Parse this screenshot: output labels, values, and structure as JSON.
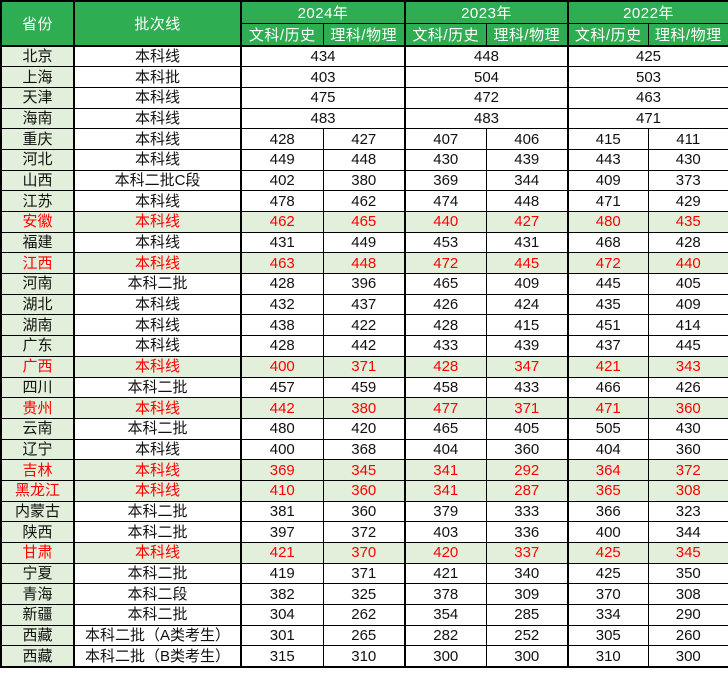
{
  "colors": {
    "header_bg": "#2EAD52",
    "header_text": "#FFFFFF",
    "province_col_bg": "#E2EFDA",
    "highlight_row_bg": "#E2EFDA",
    "highlight_text": "#FF0000",
    "body_text": "#111111",
    "border": "#000000",
    "cell_bg": "#FFFFFF"
  },
  "chart_data": {
    "type": "table",
    "title": "",
    "header": {
      "province": "省份",
      "batch": "批次线",
      "years": [
        "2024年",
        "2023年",
        "2022年"
      ],
      "subcols": [
        "文科/历史",
        "理科/物理"
      ]
    },
    "rows": [
      {
        "province": "北京",
        "batch": "本科线",
        "merged": true,
        "highlight": false,
        "values": [
          434,
          448,
          425
        ]
      },
      {
        "province": "上海",
        "batch": "本科批",
        "merged": true,
        "highlight": false,
        "values": [
          403,
          504,
          503
        ]
      },
      {
        "province": "天津",
        "batch": "本科线",
        "merged": true,
        "highlight": false,
        "values": [
          475,
          472,
          463
        ]
      },
      {
        "province": "海南",
        "batch": "本科线",
        "merged": true,
        "highlight": false,
        "values": [
          483,
          483,
          471
        ]
      },
      {
        "province": "重庆",
        "batch": "本科线",
        "merged": false,
        "highlight": false,
        "values": [
          428,
          427,
          407,
          406,
          415,
          411
        ]
      },
      {
        "province": "河北",
        "batch": "本科线",
        "merged": false,
        "highlight": false,
        "values": [
          449,
          448,
          430,
          439,
          443,
          430
        ]
      },
      {
        "province": "山西",
        "batch": "本科二批C段",
        "merged": false,
        "highlight": false,
        "values": [
          402,
          380,
          369,
          344,
          409,
          373
        ]
      },
      {
        "province": "江苏",
        "batch": "本科线",
        "merged": false,
        "highlight": false,
        "values": [
          478,
          462,
          474,
          448,
          471,
          429
        ]
      },
      {
        "province": "安徽",
        "batch": "本科线",
        "merged": false,
        "highlight": true,
        "values": [
          462,
          465,
          440,
          427,
          480,
          435
        ]
      },
      {
        "province": "福建",
        "batch": "本科线",
        "merged": false,
        "highlight": false,
        "values": [
          431,
          449,
          453,
          431,
          468,
          428
        ]
      },
      {
        "province": "江西",
        "batch": "本科线",
        "merged": false,
        "highlight": true,
        "values": [
          463,
          448,
          472,
          445,
          472,
          440
        ]
      },
      {
        "province": "河南",
        "batch": "本科二批",
        "merged": false,
        "highlight": false,
        "values": [
          428,
          396,
          465,
          409,
          445,
          405
        ]
      },
      {
        "province": "湖北",
        "batch": "本科线",
        "merged": false,
        "highlight": false,
        "values": [
          432,
          437,
          426,
          424,
          435,
          409
        ]
      },
      {
        "province": "湖南",
        "batch": "本科线",
        "merged": false,
        "highlight": false,
        "values": [
          438,
          422,
          428,
          415,
          451,
          414
        ]
      },
      {
        "province": "广东",
        "batch": "本科线",
        "merged": false,
        "highlight": false,
        "values": [
          428,
          442,
          433,
          439,
          437,
          445
        ]
      },
      {
        "province": "广西",
        "batch": "本科线",
        "merged": false,
        "highlight": true,
        "values": [
          400,
          371,
          428,
          347,
          421,
          343
        ]
      },
      {
        "province": "四川",
        "batch": "本科二批",
        "merged": false,
        "highlight": false,
        "values": [
          457,
          459,
          458,
          433,
          466,
          426
        ]
      },
      {
        "province": "贵州",
        "batch": "本科线",
        "merged": false,
        "highlight": true,
        "values": [
          442,
          380,
          477,
          371,
          471,
          360
        ]
      },
      {
        "province": "云南",
        "batch": "本科二批",
        "merged": false,
        "highlight": false,
        "values": [
          480,
          420,
          465,
          405,
          505,
          430
        ]
      },
      {
        "province": "辽宁",
        "batch": "本科线",
        "merged": false,
        "highlight": false,
        "values": [
          400,
          368,
          404,
          360,
          404,
          360
        ]
      },
      {
        "province": "吉林",
        "batch": "本科线",
        "merged": false,
        "highlight": true,
        "values": [
          369,
          345,
          341,
          292,
          364,
          372
        ]
      },
      {
        "province": "黑龙江",
        "batch": "本科线",
        "merged": false,
        "highlight": true,
        "values": [
          410,
          360,
          341,
          287,
          365,
          308
        ]
      },
      {
        "province": "内蒙古",
        "batch": "本科二批",
        "merged": false,
        "highlight": false,
        "values": [
          381,
          360,
          379,
          333,
          366,
          323
        ]
      },
      {
        "province": "陕西",
        "batch": "本科二批",
        "merged": false,
        "highlight": false,
        "values": [
          397,
          372,
          403,
          336,
          400,
          344
        ]
      },
      {
        "province": "甘肃",
        "batch": "本科线",
        "merged": false,
        "highlight": true,
        "values": [
          421,
          370,
          420,
          337,
          425,
          345
        ]
      },
      {
        "province": "宁夏",
        "batch": "本科二批",
        "merged": false,
        "highlight": false,
        "values": [
          419,
          371,
          421,
          340,
          425,
          350
        ]
      },
      {
        "province": "青海",
        "batch": "本科二段",
        "merged": false,
        "highlight": false,
        "values": [
          382,
          325,
          378,
          309,
          370,
          308
        ]
      },
      {
        "province": "新疆",
        "batch": "本科二批",
        "merged": false,
        "highlight": false,
        "values": [
          304,
          262,
          354,
          285,
          334,
          290
        ]
      },
      {
        "province": "西藏",
        "batch": "本科二批（A类考生）",
        "merged": false,
        "highlight": false,
        "values": [
          301,
          265,
          282,
          252,
          305,
          260
        ]
      },
      {
        "province": "西藏",
        "batch": "本科二批（B类考生）",
        "merged": false,
        "highlight": false,
        "values": [
          315,
          310,
          300,
          300,
          310,
          300
        ]
      }
    ]
  }
}
